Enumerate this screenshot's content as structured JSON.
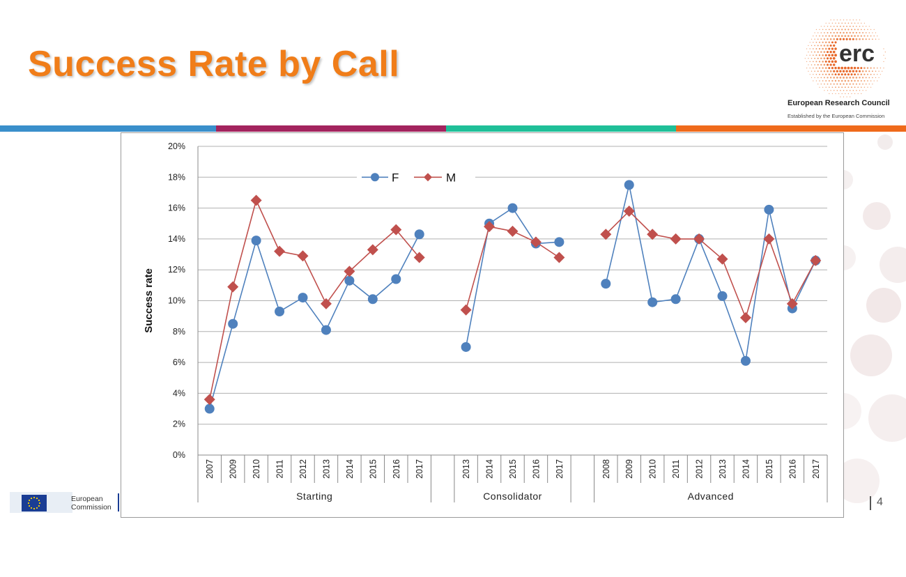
{
  "slide": {
    "title": "Success Rate by Call",
    "logo_word": "erc",
    "logo_org": "European Research Council",
    "logo_sub": "Established by the European Commission",
    "ec_logo_line1": "European",
    "ec_logo_line2": "Commission",
    "page_number": "4"
  },
  "colors": {
    "title": "#f07d19",
    "band": [
      "#3a8fcb",
      "#a3245e",
      "#1fbf98",
      "#ef6a1b"
    ],
    "series_f": "#4f81bd",
    "series_m": "#c0504d"
  },
  "chart_data": {
    "type": "line",
    "ylabel": "Success rate",
    "ylim": [
      0,
      20
    ],
    "yticks": [
      "0%",
      "2%",
      "4%",
      "6%",
      "8%",
      "10%",
      "12%",
      "14%",
      "16%",
      "18%",
      "20%"
    ],
    "grid": true,
    "legend_position": "top-left",
    "groups": [
      {
        "name": "Starting",
        "categories": [
          "2007",
          "2009",
          "2010",
          "2011",
          "2012",
          "2013",
          "2014",
          "2015",
          "2016",
          "2017"
        ],
        "series": [
          {
            "name": "F",
            "values": [
              3.0,
              8.5,
              13.9,
              9.3,
              10.2,
              8.1,
              11.3,
              10.1,
              11.4,
              14.3
            ]
          },
          {
            "name": "M",
            "values": [
              3.6,
              10.9,
              16.5,
              13.2,
              12.9,
              9.8,
              11.9,
              13.3,
              14.6,
              12.8
            ]
          }
        ]
      },
      {
        "name": "Consolidator",
        "categories": [
          "2013",
          "2014",
          "2015",
          "2016",
          "2017"
        ],
        "series": [
          {
            "name": "F",
            "values": [
              7.0,
              15.0,
              16.0,
              13.7,
              13.8
            ]
          },
          {
            "name": "M",
            "values": [
              9.4,
              14.8,
              14.5,
              13.8,
              12.8
            ]
          }
        ]
      },
      {
        "name": "Advanced",
        "categories": [
          "2008",
          "2009",
          "2010",
          "2011",
          "2012",
          "2013",
          "2014",
          "2015",
          "2016",
          "2017"
        ],
        "series": [
          {
            "name": "F",
            "values": [
              11.1,
              17.5,
              9.9,
              10.1,
              14.0,
              10.3,
              6.1,
              15.9,
              9.5,
              12.6
            ]
          },
          {
            "name": "M",
            "values": [
              14.3,
              15.8,
              14.3,
              14.0,
              14.0,
              12.7,
              8.9,
              14.0,
              9.8,
              12.6
            ]
          }
        ]
      }
    ]
  }
}
